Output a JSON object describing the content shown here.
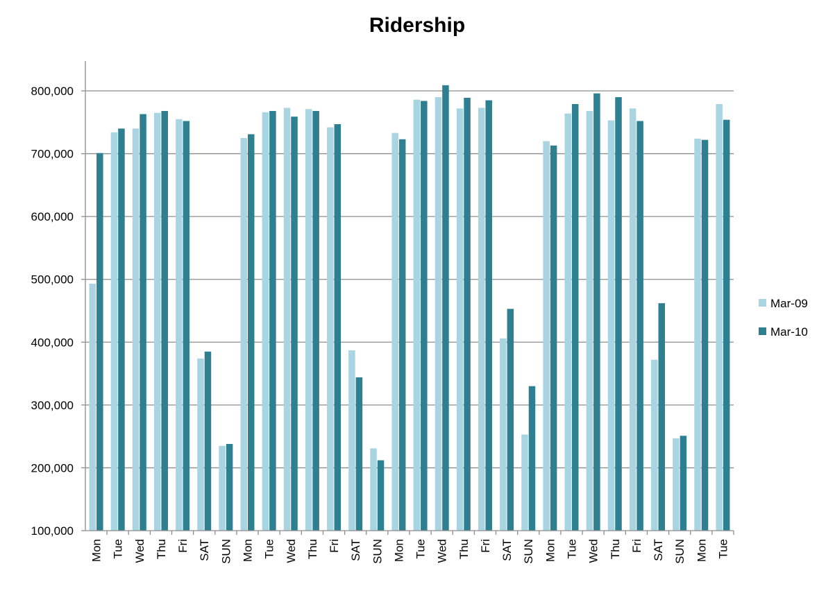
{
  "chart_data": {
    "type": "bar",
    "title": "Ridership",
    "xlabel": "",
    "ylabel": "",
    "ylim": [
      100000,
      850000
    ],
    "yticks": [
      100000,
      200000,
      300000,
      400000,
      500000,
      600000,
      700000,
      800000
    ],
    "ytick_labels": [
      "100,000",
      "200,000",
      "300,000",
      "400,000",
      "500,000",
      "600,000",
      "700,000",
      "800,000"
    ],
    "grid": true,
    "legend_position": "right",
    "categories": [
      "Mon",
      "Tue",
      "Wed",
      "Thu",
      "Fri",
      "SAT",
      "SUN",
      "Mon",
      "Tue",
      "Wed",
      "Thu",
      "Fri",
      "SAT",
      "SUN",
      "Mon",
      "Tue",
      "Wed",
      "Thu",
      "Fri",
      "SAT",
      "SUN",
      "Mon",
      "Tue",
      "Wed",
      "Thu",
      "Fri",
      "SAT",
      "SUN",
      "Mon",
      "Tue"
    ],
    "series": [
      {
        "name": "Mar-09",
        "color": "#a9d5e2",
        "values": [
          493000,
          734000,
          740000,
          765000,
          755000,
          374000,
          235000,
          725000,
          766000,
          773000,
          771000,
          742000,
          387000,
          231000,
          733000,
          786000,
          790000,
          772000,
          773000,
          406000,
          253000,
          720000,
          764000,
          768000,
          753000,
          772000,
          372000,
          247000,
          724000,
          779000
        ]
      },
      {
        "name": "Mar-10",
        "color": "#2e7f90",
        "values": [
          701000,
          740000,
          763000,
          768000,
          752000,
          385000,
          238000,
          731000,
          768000,
          759000,
          768000,
          747000,
          344000,
          212000,
          723000,
          784000,
          809000,
          789000,
          785000,
          453000,
          330000,
          713000,
          779000,
          796000,
          790000,
          752000,
          462000,
          251000,
          722000,
          754000
        ]
      }
    ]
  }
}
